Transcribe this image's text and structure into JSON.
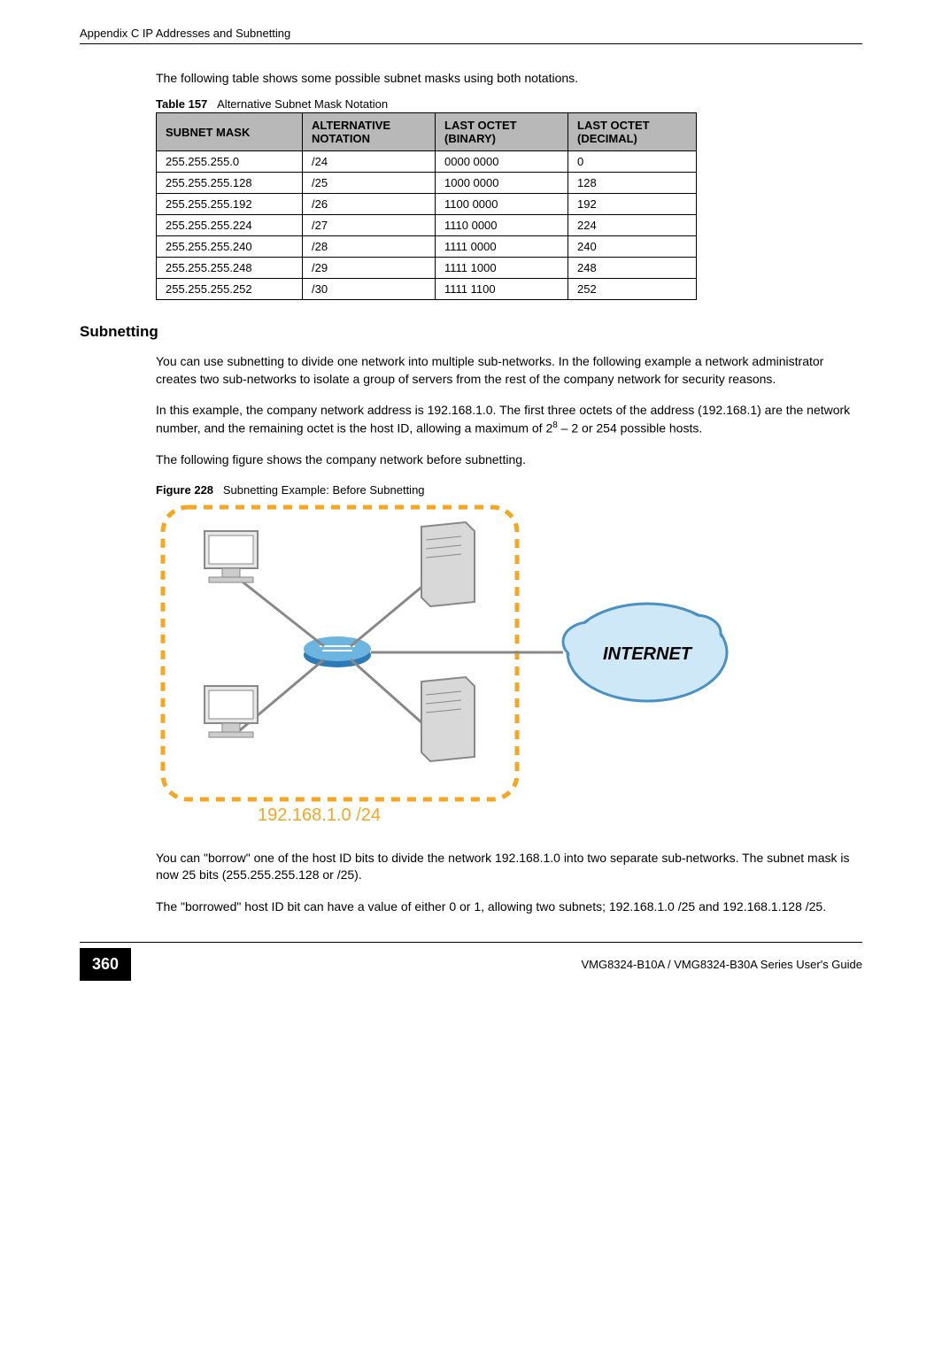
{
  "header": {
    "left": "Appendix C IP Addresses and Subnetting"
  },
  "intro": "The following table shows some possible subnet masks using both notations.",
  "table": {
    "caption_prefix": "Table 157",
    "caption_text": "Alternative Subnet Mask Notation",
    "columns": [
      "SUBNET MASK",
      "ALTERNATIVE NOTATION",
      "LAST OCTET (BINARY)",
      "LAST OCTET (DECIMAL)"
    ],
    "rows": [
      [
        "255.255.255.0",
        "/24",
        "0000 0000",
        "0"
      ],
      [
        "255.255.255.128",
        "/25",
        "1000 0000",
        "128"
      ],
      [
        "255.255.255.192",
        "/26",
        "1100 0000",
        "192"
      ],
      [
        "255.255.255.224",
        "/27",
        "1110 0000",
        "224"
      ],
      [
        "255.255.255.240",
        "/28",
        "1111 0000",
        "240"
      ],
      [
        "255.255.255.248",
        "/29",
        "1111 1000",
        "248"
      ],
      [
        "255.255.255.252",
        "/30",
        "1111 1100",
        "252"
      ]
    ]
  },
  "section_title": "Subnetting",
  "para1": "You can use subnetting to divide one network into multiple sub-networks. In the following example a network administrator creates two sub-networks to isolate a group of servers from the rest of the company network for security reasons.",
  "para2_a": "In this example, the company network address is 192.168.1.0. The first three octets of the address (192.168.1) are the network number, and the remaining octet is the host ID, allowing a maximum of 2",
  "para2_sup": "8",
  "para2_b": " – 2 or 254 possible hosts.",
  "para3": "The following figure shows the company network before subnetting.",
  "figure": {
    "caption_prefix": "Figure 228",
    "caption_text": "Subnetting Example: Before Subnetting",
    "label": "192.168.1.0 /24",
    "internet_label": "INTERNET",
    "colors": {
      "border": "#f5a623",
      "label_text": "#f5a623",
      "lan_lines": "#888888",
      "internet_fill": "#cfe8f7",
      "router_blue": "#2d7bb6"
    }
  },
  "para4": "You can \"borrow\" one of the host ID bits to divide the network 192.168.1.0 into two separate sub-networks. The subnet mask is now 25 bits (255.255.255.128 or /25).",
  "para5": "The \"borrowed\" host ID bit can have a value of either 0 or 1, allowing two subnets; 192.168.1.0 /25 and 192.168.1.128 /25.",
  "footer": {
    "page_num": "360",
    "guide": "VMG8324-B10A / VMG8324-B30A Series User's Guide"
  }
}
